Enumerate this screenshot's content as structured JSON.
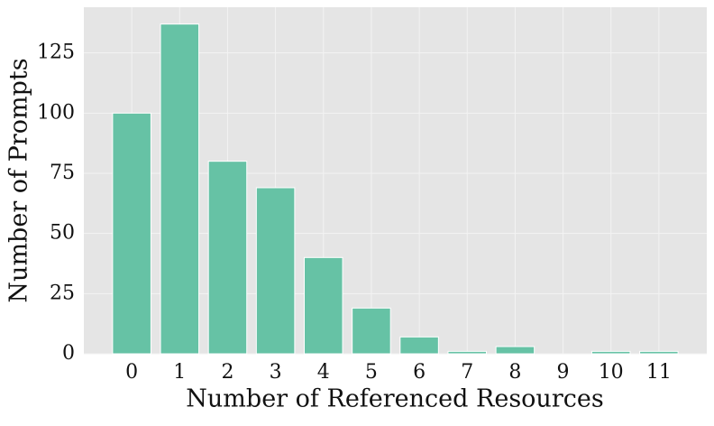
{
  "chart_data": {
    "type": "bar",
    "x_label": "Number of Referenced Resources",
    "y_label": "Number of Prompts",
    "categories": [
      "0",
      "1",
      "2",
      "3",
      "4",
      "5",
      "6",
      "7",
      "8",
      "9",
      "10",
      "11"
    ],
    "values": [
      100,
      137,
      80,
      69,
      40,
      19,
      7,
      1,
      3,
      0,
      1,
      1
    ],
    "color": "#66c2a5",
    "ylim": [
      0,
      144
    ],
    "yticks": [
      0,
      25,
      50,
      75,
      100,
      125
    ],
    "grid": true
  }
}
